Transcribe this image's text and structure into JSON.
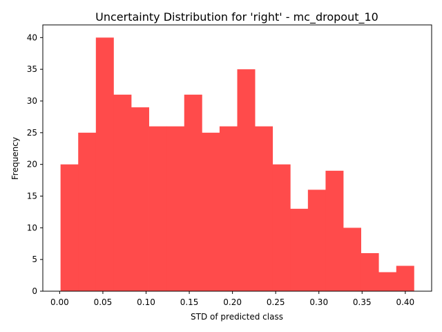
{
  "chart_data": {
    "type": "bar",
    "subtype": "histogram",
    "title": "Uncertainty Distribution for 'right' - mc_dropout_10",
    "xlabel": "STD of predicted class",
    "ylabel": "Frequency",
    "bin_edges": [
      0.001,
      0.02145,
      0.0419,
      0.06235,
      0.0828,
      0.10325,
      0.1237,
      0.14415,
      0.1646,
      0.18505,
      0.2055,
      0.22595,
      0.2464,
      0.26685,
      0.2873,
      0.30775,
      0.3282,
      0.34865,
      0.3691,
      0.38955,
      0.41
    ],
    "values": [
      20,
      25,
      40,
      31,
      29,
      26,
      26,
      31,
      25,
      26,
      35,
      26,
      20,
      13,
      16,
      19,
      10,
      6,
      3,
      4
    ],
    "xlim": [
      -0.0195,
      0.4305
    ],
    "ylim": [
      0,
      42
    ],
    "xticks": [
      0.0,
      0.05,
      0.1,
      0.15,
      0.2,
      0.25,
      0.3,
      0.35,
      0.4
    ],
    "xtick_labels": [
      "0.00",
      "0.05",
      "0.10",
      "0.15",
      "0.20",
      "0.25",
      "0.30",
      "0.35",
      "0.40"
    ],
    "yticks": [
      0,
      5,
      10,
      15,
      20,
      25,
      30,
      35,
      40
    ],
    "ytick_labels": [
      "0",
      "5",
      "10",
      "15",
      "20",
      "25",
      "30",
      "35",
      "40"
    ],
    "bar_color": "#ff4b4b",
    "grid": false,
    "legend": "none"
  }
}
